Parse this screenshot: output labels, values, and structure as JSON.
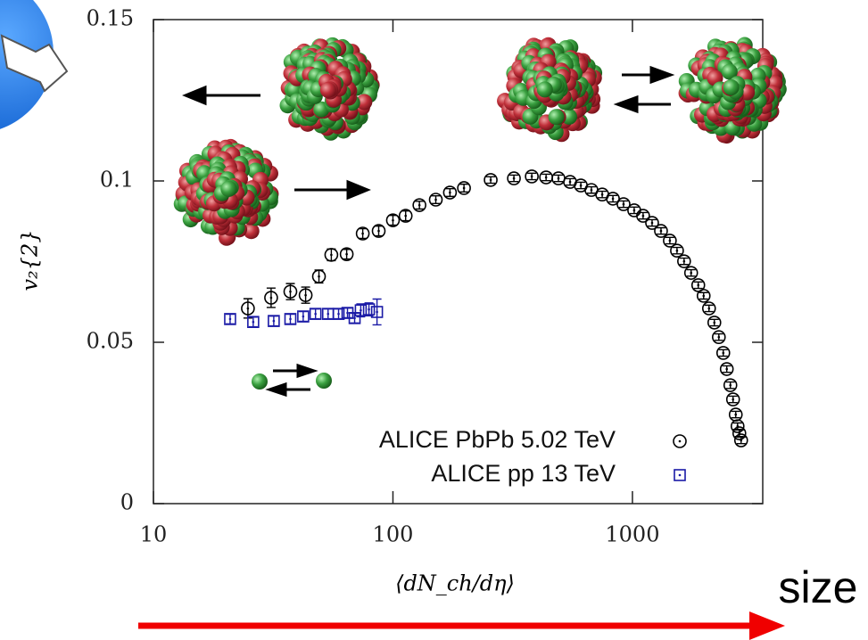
{
  "chart_data": {
    "type": "scatter",
    "xlabel": "⟨dN_ch/dη⟩",
    "ylabel": "v₂{2}",
    "annotation": "size",
    "xlim": [
      10,
      3500
    ],
    "ylim": [
      0,
      0.15
    ],
    "xscale": "log",
    "xticks": [
      10,
      100,
      1000
    ],
    "yticks": [
      0,
      0.05,
      0.1,
      0.15
    ],
    "legend": "lower right",
    "series": [
      {
        "name": "ALICE PbPb 5.02 TeV",
        "color": "#000000",
        "marker": "circle",
        "x": [
          24.8,
          31.0,
          37.3,
          43.2,
          49.1,
          55.3,
          64.1,
          74.8,
          87.2,
          100,
          113,
          129,
          151,
          173,
          198,
          256,
          320,
          380,
          436,
          491,
          549,
          609,
          674,
          748,
          829,
          918,
          1017,
          1108,
          1208,
          1316,
          1433,
          1535,
          1643,
          1758,
          1883,
          1983,
          2088,
          2198,
          2295,
          2395,
          2477,
          2564,
          2631,
          2700,
          2748,
          2795,
          2843
        ],
        "values": [
          0.0605,
          0.0638,
          0.0657,
          0.0646,
          0.0704,
          0.0771,
          0.0773,
          0.0837,
          0.0845,
          0.0878,
          0.0892,
          0.0925,
          0.0942,
          0.0964,
          0.0978,
          0.1003,
          0.1008,
          0.1014,
          0.1011,
          0.1008,
          0.0997,
          0.0986,
          0.0972,
          0.0958,
          0.0945,
          0.0928,
          0.0909,
          0.0892,
          0.087,
          0.0845,
          0.0815,
          0.0784,
          0.0751,
          0.0715,
          0.0677,
          0.0644,
          0.0605,
          0.0561,
          0.0516,
          0.0467,
          0.0417,
          0.0367,
          0.0323,
          0.0276,
          0.024,
          0.0218,
          0.0196
        ],
        "errors": [
          0.003,
          0.003,
          0.0025,
          0.0025,
          0.002,
          0.0018,
          0.0015,
          0.0015,
          0.0015,
          0.0015,
          0.0015,
          0.0012,
          0.0012,
          0.0012,
          0.0012,
          0.001,
          0.001,
          0.001,
          0.001,
          0.001,
          0.001,
          0.001,
          0.001,
          0.001,
          0.001,
          0.001,
          0.001,
          0.001,
          0.001,
          0.001,
          0.001,
          0.001,
          0.001,
          0.001,
          0.001,
          0.001,
          0.001,
          0.001,
          0.001,
          0.001,
          0.001,
          0.001,
          0.001,
          0.001,
          0.001,
          0.001,
          0.001
        ]
      },
      {
        "name": "ALICE pp 13 TeV",
        "color": "#1a1aa6",
        "marker": "square",
        "x": [
          20.9,
          26.1,
          31.8,
          37.3,
          42.2,
          47.5,
          53.6,
          59.3,
          64.6,
          69.2,
          73.4,
          79.4,
          85.8
        ],
        "values": [
          0.0572,
          0.0563,
          0.0566,
          0.0572,
          0.058,
          0.0588,
          0.0588,
          0.0588,
          0.0591,
          0.0575,
          0.0599,
          0.0602,
          0.0594
        ],
        "errors": [
          0.0015,
          0.0015,
          0.0015,
          0.0015,
          0.0015,
          0.0015,
          0.0015,
          0.0015,
          0.0015,
          0.0015,
          0.002,
          0.002,
          0.004
        ]
      }
    ]
  }
}
